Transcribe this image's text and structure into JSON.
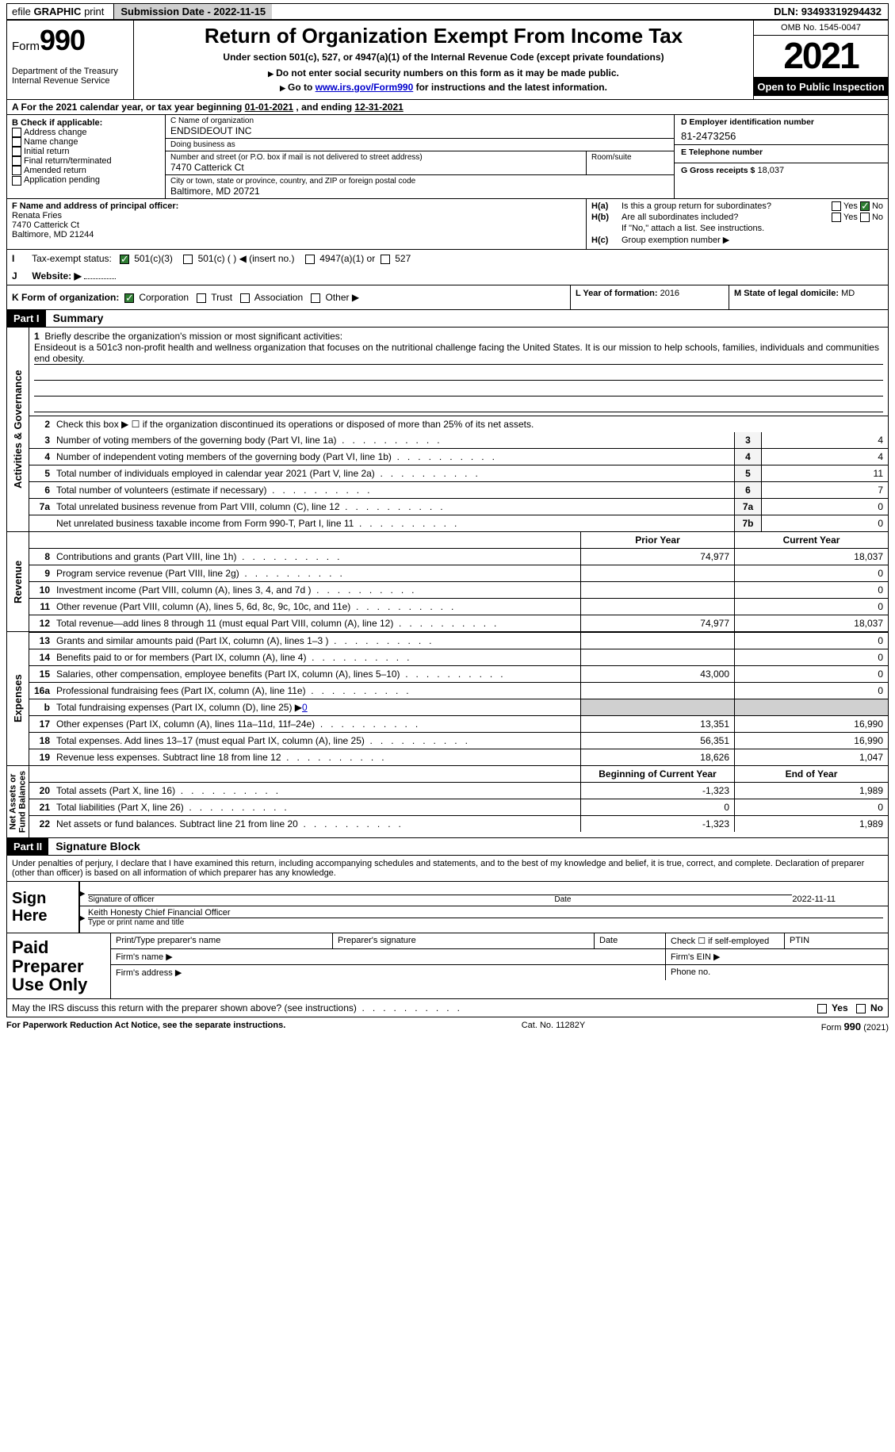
{
  "topbar": {
    "efile_prefix": "efile",
    "efile_bold": "GRAPHIC",
    "efile_suffix": "print",
    "submission_label": "Submission Date - 2022-11-15",
    "dln": "DLN: 93493319294432"
  },
  "header": {
    "form_word": "Form",
    "form_num": "990",
    "dept": "Department of the Treasury\nInternal Revenue Service",
    "title": "Return of Organization Exempt From Income Tax",
    "subtitle": "Under section 501(c), 527, or 4947(a)(1) of the Internal Revenue Code (except private foundations)",
    "hint1": "Do not enter social security numbers on this form as it may be made public.",
    "hint2_pre": "Go to ",
    "hint2_link": "www.irs.gov/Form990",
    "hint2_post": " for instructions and the latest information.",
    "omb": "OMB No. 1545-0047",
    "year": "2021",
    "open": "Open to Public Inspection"
  },
  "calyear": {
    "pre": "A  For the 2021 calendar year, or tax year beginning ",
    "begin": "01-01-2021",
    "mid": "    , and ending ",
    "end": "12-31-2021"
  },
  "colB": {
    "header": "B Check if applicable:",
    "items": [
      "Address change",
      "Name change",
      "Initial return",
      "Final return/terminated",
      "Amended return",
      "Application pending"
    ]
  },
  "colC": {
    "name_hdr": "C Name of organization",
    "name": "ENDSIDEOUT INC",
    "dba_hdr": "Doing business as",
    "dba": "",
    "addr_hdr": "Number and street (or P.O. box if mail is not delivered to street address)",
    "addr": "7470 Catterick Ct",
    "room_hdr": "Room/suite",
    "city_hdr": "City or town, state or province, country, and ZIP or foreign postal code",
    "city": "Baltimore, MD  20721"
  },
  "colD": {
    "d_hdr": "D Employer identification number",
    "d_val": "81-2473256",
    "e_hdr": "E Telephone number",
    "e_val": "",
    "g_hdr": "G Gross receipts $",
    "g_val": "18,037"
  },
  "colF": {
    "hdr": "F Name and address of principal officer:",
    "name": "Renata Fries",
    "addr1": "7470 Catterick Ct",
    "addr2": "Baltimore, MD  21244"
  },
  "colH": {
    "ha_lbl": "H(a)",
    "ha_txt": "Is this a group return for subordinates?",
    "hb_lbl": "H(b)",
    "hb_txt": "Are all subordinates included?",
    "hb_note": "If \"No,\" attach a list. See instructions.",
    "hc_lbl": "H(c)",
    "hc_txt": "Group exemption number ▶",
    "yes": "Yes",
    "no": "No"
  },
  "rowI": {
    "lbl": "I",
    "txt": "Tax-exempt status:",
    "opts": [
      "501(c)(3)",
      "501(c) (  ) ◀ (insert no.)",
      "4947(a)(1) or",
      "527"
    ]
  },
  "rowJ": {
    "lbl": "J",
    "txt": "Website: ▶",
    "val": ""
  },
  "rowK": {
    "lbl": "K Form of organization:",
    "opts": [
      "Corporation",
      "Trust",
      "Association",
      "Other ▶"
    ],
    "L_hdr": "L Year of formation:",
    "L_val": "2016",
    "M_hdr": "M State of legal domicile:",
    "M_val": "MD"
  },
  "part1": {
    "bar": "Part I",
    "title": "Summary",
    "line1_lbl": "1",
    "line1_txt": "Briefly describe the organization's mission or most significant activities:",
    "mission": "Ensideout is a 501c3 non-profit health and wellness organization that focuses on the nutritional challenge facing the United States. It is our mission to help schools, families, individuals and communities end obesity.",
    "line2_lbl": "2",
    "line2_txt": "Check this box ▶ ☐  if the organization discontinued its operations or disposed of more than 25% of its net assets.",
    "rows": [
      {
        "n": "3",
        "t": "Number of voting members of the governing body (Part VI, line 1a)",
        "b": "3",
        "v": "4"
      },
      {
        "n": "4",
        "t": "Number of independent voting members of the governing body (Part VI, line 1b)",
        "b": "4",
        "v": "4"
      },
      {
        "n": "5",
        "t": "Total number of individuals employed in calendar year 2021 (Part V, line 2a)",
        "b": "5",
        "v": "11"
      },
      {
        "n": "6",
        "t": "Total number of volunteers (estimate if necessary)",
        "b": "6",
        "v": "7"
      },
      {
        "n": "7a",
        "t": "Total unrelated business revenue from Part VIII, column (C), line 12",
        "b": "7a",
        "v": "0"
      },
      {
        "n": "",
        "t": "Net unrelated business taxable income from Form 990-T, Part I, line 11",
        "b": "7b",
        "v": "0"
      }
    ],
    "hdr_prior": "Prior Year",
    "hdr_curr": "Current Year",
    "vlabels": {
      "ag": "Activities & Governance",
      "rev": "Revenue",
      "exp": "Expenses",
      "na": "Net Assets or\nFund Balances"
    },
    "revenue": [
      {
        "n": "8",
        "t": "Contributions and grants (Part VIII, line 1h)",
        "p": "74,977",
        "c": "18,037"
      },
      {
        "n": "9",
        "t": "Program service revenue (Part VIII, line 2g)",
        "p": "",
        "c": "0"
      },
      {
        "n": "10",
        "t": "Investment income (Part VIII, column (A), lines 3, 4, and 7d )",
        "p": "",
        "c": "0"
      },
      {
        "n": "11",
        "t": "Other revenue (Part VIII, column (A), lines 5, 6d, 8c, 9c, 10c, and 11e)",
        "p": "",
        "c": "0"
      },
      {
        "n": "12",
        "t": "Total revenue—add lines 8 through 11 (must equal Part VIII, column (A), line 12)",
        "p": "74,977",
        "c": "18,037"
      }
    ],
    "expenses": [
      {
        "n": "13",
        "t": "Grants and similar amounts paid (Part IX, column (A), lines 1–3 )",
        "p": "",
        "c": "0"
      },
      {
        "n": "14",
        "t": "Benefits paid to or for members (Part IX, column (A), line 4)",
        "p": "",
        "c": "0"
      },
      {
        "n": "15",
        "t": "Salaries, other compensation, employee benefits (Part IX, column (A), lines 5–10)",
        "p": "43,000",
        "c": "0"
      },
      {
        "n": "16a",
        "t": "Professional fundraising fees (Part IX, column (A), line 11e)",
        "p": "",
        "c": "0"
      },
      {
        "n": "b",
        "t": "Total fundraising expenses (Part IX, column (D), line 25) ▶",
        "p": "gray",
        "c": "gray",
        "inline": "0"
      },
      {
        "n": "17",
        "t": "Other expenses (Part IX, column (A), lines 11a–11d, 11f–24e)",
        "p": "13,351",
        "c": "16,990"
      },
      {
        "n": "18",
        "t": "Total expenses. Add lines 13–17 (must equal Part IX, column (A), line 25)",
        "p": "56,351",
        "c": "16,990"
      },
      {
        "n": "19",
        "t": "Revenue less expenses. Subtract line 18 from line 12",
        "p": "18,626",
        "c": "1,047"
      }
    ],
    "hdr_begin": "Beginning of Current Year",
    "hdr_end": "End of Year",
    "netassets": [
      {
        "n": "20",
        "t": "Total assets (Part X, line 16)",
        "p": "-1,323",
        "c": "1,989"
      },
      {
        "n": "21",
        "t": "Total liabilities (Part X, line 26)",
        "p": "0",
        "c": "0"
      },
      {
        "n": "22",
        "t": "Net assets or fund balances. Subtract line 21 from line 20",
        "p": "-1,323",
        "c": "1,989"
      }
    ]
  },
  "part2": {
    "bar": "Part II",
    "title": "Signature Block",
    "decl": "Under penalties of perjury, I declare that I have examined this return, including accompanying schedules and statements, and to the best of my knowledge and belief, it is true, correct, and complete. Declaration of preparer (other than officer) is based on all information of which preparer has any knowledge.",
    "sign_here": "Sign Here",
    "sig_officer": "Signature of officer",
    "sig_date": "2022-11-11",
    "date_lbl": "Date",
    "typed_name": "Keith Honesty  Chief Financial Officer",
    "typed_lbl": "Type or print name and title",
    "paid": "Paid Preparer Use Only",
    "p_name": "Print/Type preparer's name",
    "p_sig": "Preparer's signature",
    "p_date": "Date",
    "p_check": "Check ☐ if self-employed",
    "p_ptin": "PTIN",
    "p_firm": "Firm's name  ▶",
    "p_ein": "Firm's EIN ▶",
    "p_addr": "Firm's address ▶",
    "p_phone": "Phone no."
  },
  "may_irs": {
    "txt": "May the IRS discuss this return with the preparer shown above? (see instructions)",
    "yes": "Yes",
    "no": "No"
  },
  "footer": {
    "l": "For Paperwork Reduction Act Notice, see the separate instructions.",
    "m": "Cat. No. 11282Y",
    "r": "Form 990 (2021)"
  }
}
